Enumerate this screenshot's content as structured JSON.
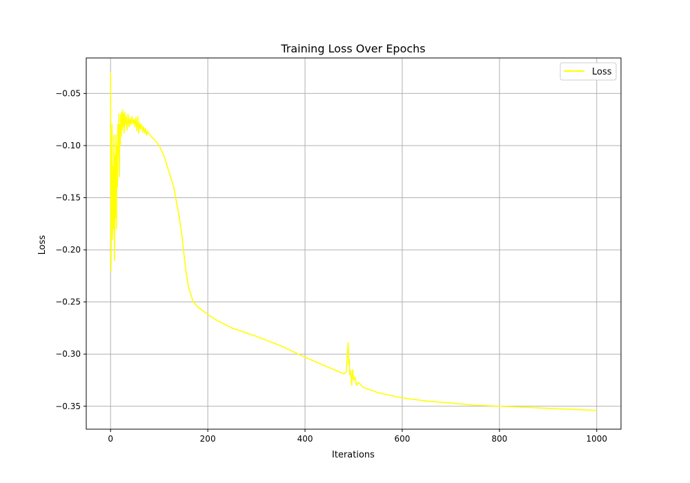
{
  "chart_data": {
    "type": "line",
    "title": "Training Loss Over Epochs",
    "xlabel": "Iterations",
    "ylabel": "Loss",
    "xlim": [
      -50,
      1050
    ],
    "ylim": [
      -0.372,
      -0.016
    ],
    "xticks": [
      0,
      200,
      400,
      600,
      800,
      1000
    ],
    "yticks": [
      -0.35,
      -0.3,
      -0.25,
      -0.2,
      -0.15,
      -0.1,
      -0.05
    ],
    "xtick_labels": [
      "0",
      "200",
      "400",
      "600",
      "800",
      "1000"
    ],
    "ytick_labels": [
      "−0.35",
      "−0.30",
      "−0.25",
      "−0.20",
      "−0.15",
      "−0.10",
      "−0.05"
    ],
    "grid": true,
    "legend_position": "top-right",
    "series": [
      {
        "name": "Loss",
        "color": "#ffff00",
        "x": [
          0,
          1,
          2,
          3,
          4,
          5,
          6,
          7,
          8,
          9,
          10,
          11,
          12,
          13,
          14,
          15,
          16,
          17,
          18,
          19,
          20,
          21,
          22,
          23,
          24,
          25,
          26,
          27,
          28,
          29,
          30,
          32,
          34,
          36,
          38,
          40,
          42,
          44,
          46,
          48,
          50,
          52,
          54,
          56,
          58,
          60,
          62,
          64,
          66,
          68,
          70,
          72,
          74,
          76,
          78,
          80,
          85,
          90,
          100,
          110,
          120,
          130,
          140,
          145,
          150,
          155,
          160,
          170,
          180,
          200,
          220,
          250,
          300,
          350,
          400,
          450,
          480,
          485,
          487,
          489,
          490,
          491,
          492,
          494,
          496,
          498,
          500,
          503,
          506,
          510,
          520,
          550,
          600,
          650,
          700,
          750,
          800,
          850,
          900,
          950,
          1000
        ],
        "y": [
          -0.03,
          -0.22,
          -0.14,
          -0.08,
          -0.19,
          -0.12,
          -0.18,
          -0.09,
          -0.21,
          -0.11,
          -0.17,
          -0.09,
          -0.18,
          -0.1,
          -0.14,
          -0.08,
          -0.11,
          -0.07,
          -0.13,
          -0.08,
          -0.1,
          -0.07,
          -0.09,
          -0.068,
          -0.085,
          -0.066,
          -0.082,
          -0.07,
          -0.088,
          -0.068,
          -0.08,
          -0.072,
          -0.085,
          -0.07,
          -0.082,
          -0.074,
          -0.08,
          -0.072,
          -0.079,
          -0.075,
          -0.082,
          -0.073,
          -0.086,
          -0.072,
          -0.088,
          -0.078,
          -0.084,
          -0.08,
          -0.087,
          -0.082,
          -0.088,
          -0.084,
          -0.09,
          -0.086,
          -0.089,
          -0.089,
          -0.092,
          -0.094,
          -0.1,
          -0.11,
          -0.125,
          -0.14,
          -0.165,
          -0.18,
          -0.2,
          -0.22,
          -0.235,
          -0.25,
          -0.255,
          -0.262,
          -0.268,
          -0.275,
          -0.283,
          -0.292,
          -0.303,
          -0.313,
          -0.319,
          -0.317,
          -0.3,
          -0.289,
          -0.31,
          -0.305,
          -0.32,
          -0.316,
          -0.33,
          -0.315,
          -0.325,
          -0.322,
          -0.33,
          -0.327,
          -0.332,
          -0.337,
          -0.342,
          -0.345,
          -0.347,
          -0.349,
          -0.35,
          -0.351,
          -0.352,
          -0.353,
          -0.354
        ]
      }
    ]
  }
}
